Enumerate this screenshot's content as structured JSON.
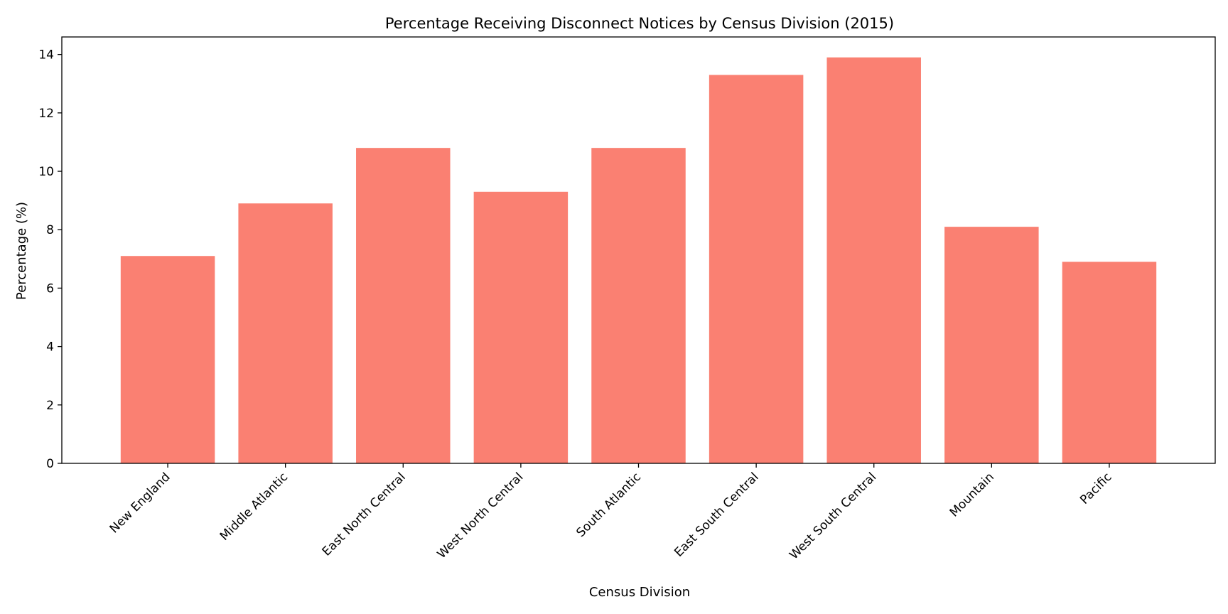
{
  "chart_data": {
    "type": "bar",
    "title": "Percentage Receiving Disconnect Notices by Census Division (2015)",
    "xlabel": "Census Division",
    "ylabel": "Percentage (%)",
    "categories": [
      "New England",
      "Middle Atlantic",
      "East North Central",
      "West North Central",
      "South Atlantic",
      "East South Central",
      "West South Central",
      "Mountain",
      "Pacific"
    ],
    "values": [
      7.1,
      8.9,
      10.8,
      9.3,
      10.8,
      13.3,
      13.9,
      8.1,
      6.9
    ],
    "ylim": [
      0,
      14.6
    ],
    "yticks": [
      0,
      2,
      4,
      6,
      8,
      10,
      12,
      14
    ],
    "bar_color": "#fa8072",
    "grid": false,
    "legend": "none"
  }
}
